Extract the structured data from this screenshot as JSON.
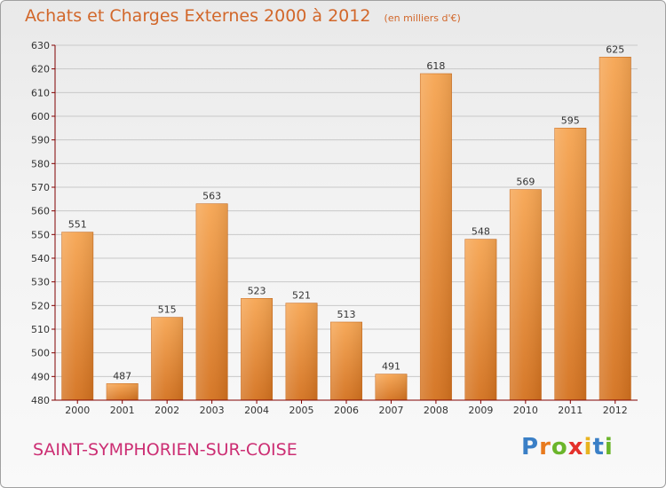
{
  "header": {
    "title": "Achats et Charges Externes 2000 à 2012",
    "subtitle": "(en milliers d'€)"
  },
  "footer": {
    "city": "SAINT-SYMPHORIEN-SUR-COISE",
    "logo_letters": [
      "P",
      "r",
      "o",
      "x",
      "i",
      "t",
      "i"
    ],
    "logo_colors": [
      "#3a7fc6",
      "#e87a1e",
      "#6bb52b",
      "#e4312b",
      "#e8b320",
      "#3a7fc6",
      "#6bb52b"
    ]
  },
  "colors": {
    "bar_top": "#f6a552",
    "bar_bottom": "#d4721f",
    "axis": "#800000",
    "grid": "#c8c8c8"
  },
  "chart_data": {
    "type": "bar",
    "categories": [
      "2000",
      "2001",
      "2002",
      "2003",
      "2004",
      "2005",
      "2006",
      "2007",
      "2008",
      "2009",
      "2010",
      "2011",
      "2012"
    ],
    "values": [
      551,
      487,
      515,
      563,
      523,
      521,
      513,
      491,
      618,
      548,
      569,
      595,
      625
    ],
    "title": "Achats et Charges Externes 2000 à 2012",
    "xlabel": "",
    "ylabel": "",
    "ylim": [
      480,
      630
    ],
    "yticks": [
      480,
      490,
      500,
      510,
      520,
      530,
      540,
      550,
      560,
      570,
      580,
      590,
      600,
      610,
      620,
      630
    ],
    "grid": true,
    "legend": "none"
  }
}
